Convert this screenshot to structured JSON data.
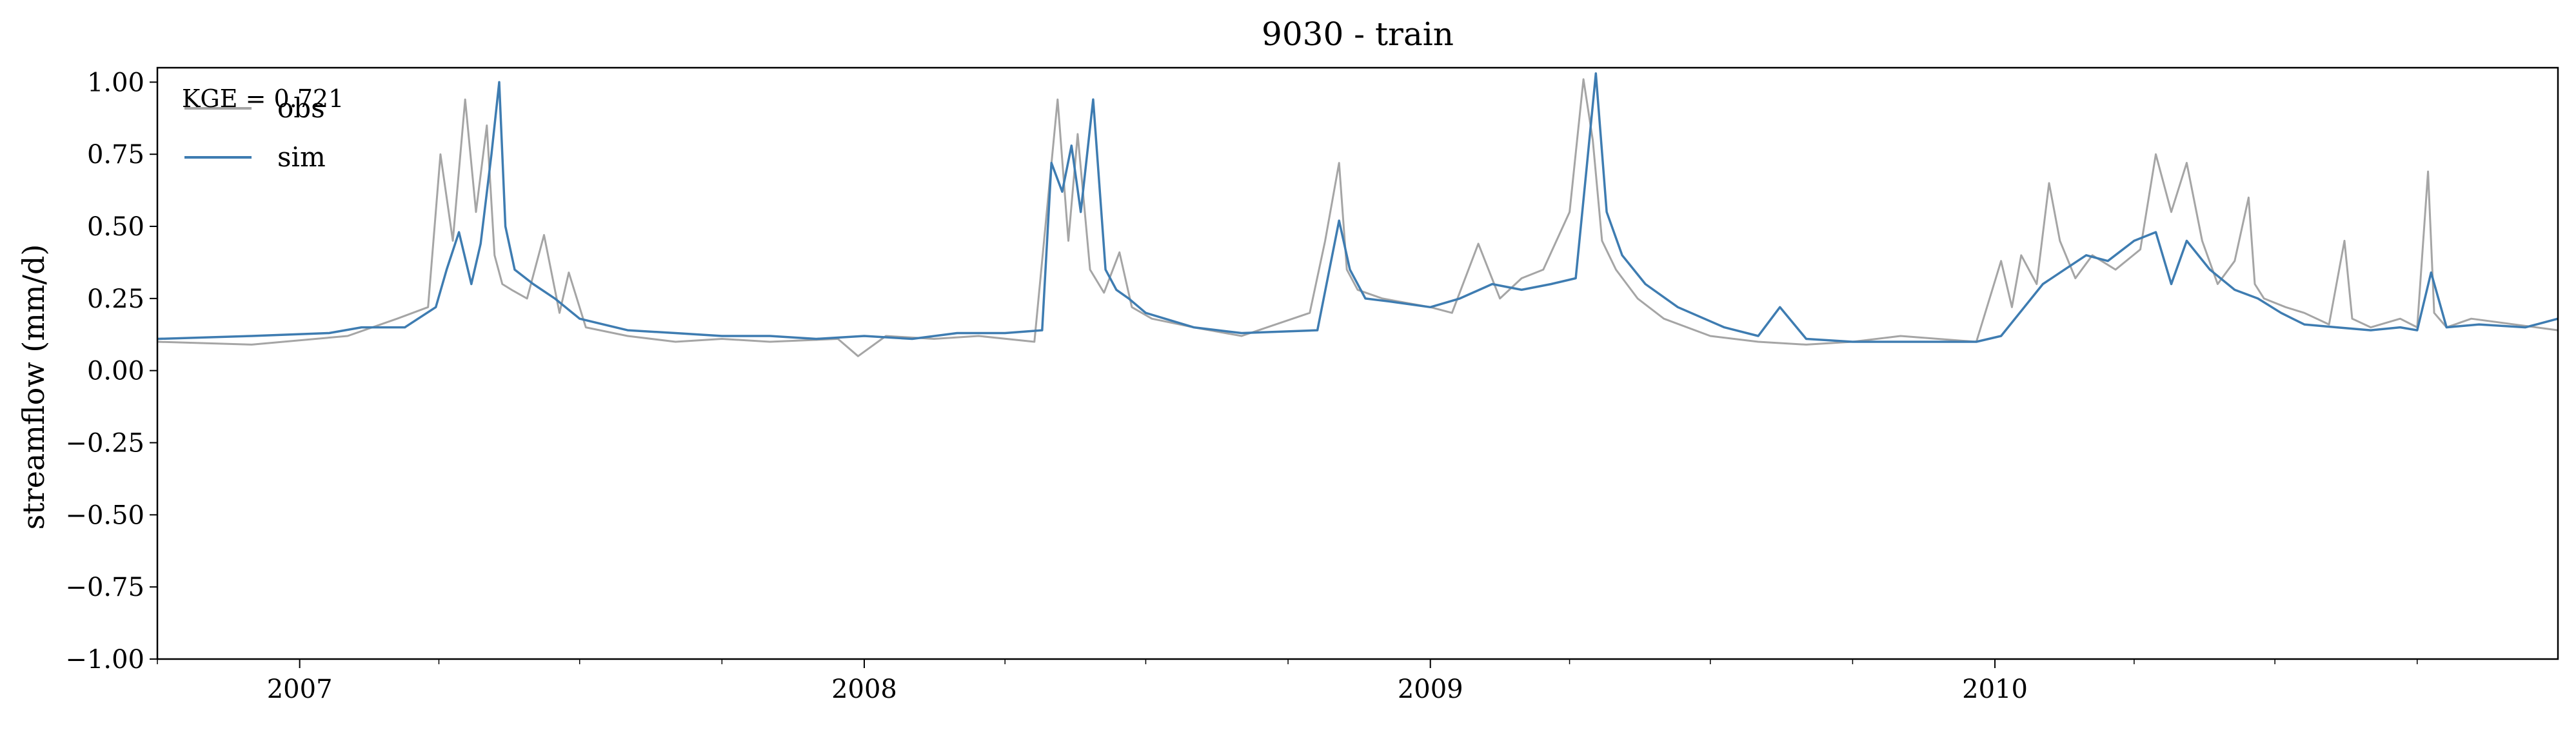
{
  "chart_data": {
    "type": "line",
    "title": "9030 - train",
    "xlabel": "",
    "ylabel": "streamflow (mm/d)",
    "xlim": [
      "2006-10-01",
      "2010-12-31"
    ],
    "ylim": [
      -1.0,
      1.05
    ],
    "y_ticks": [
      -1.0,
      -0.75,
      -0.5,
      -0.25,
      0.0,
      0.25,
      0.5,
      0.75,
      1.0
    ],
    "y_tick_labels": [
      "−1.00",
      "−0.75",
      "−0.50",
      "−0.25",
      "0.00",
      "0.25",
      "0.50",
      "0.75",
      "1.00"
    ],
    "x_major_ticks": [
      "2007-01-01",
      "2008-01-01",
      "2009-01-01",
      "2010-01-01"
    ],
    "x_tick_labels": [
      "2007",
      "2008",
      "2009",
      "2010"
    ],
    "x_minor_months": [
      1,
      4,
      7,
      10
    ],
    "grid": false,
    "legend_position": "top-left",
    "annotation": "KGE = 0.721",
    "series": [
      {
        "name": "obs",
        "color": "#a5a5a5",
        "x": [
          "2006-10-01",
          "2006-12-01",
          "2007-02-01",
          "2007-03-05",
          "2007-03-25",
          "2007-04-02",
          "2007-04-10",
          "2007-04-18",
          "2007-04-25",
          "2007-05-02",
          "2007-05-07",
          "2007-05-12",
          "2007-05-18",
          "2007-05-28",
          "2007-06-08",
          "2007-06-18",
          "2007-06-24",
          "2007-07-05",
          "2007-08-01",
          "2007-09-01",
          "2007-10-01",
          "2007-11-01",
          "2007-12-15",
          "2007-12-28",
          "2008-01-15",
          "2008-02-15",
          "2008-03-15",
          "2008-04-20",
          "2008-04-28",
          "2008-05-05",
          "2008-05-12",
          "2008-05-18",
          "2008-05-26",
          "2008-06-04",
          "2008-06-14",
          "2008-06-22",
          "2008-07-05",
          "2008-08-01",
          "2008-09-01",
          "2008-10-15",
          "2008-10-25",
          "2008-11-03",
          "2008-11-08",
          "2008-11-15",
          "2008-12-01",
          "2009-01-01",
          "2009-01-15",
          "2009-02-01",
          "2009-02-15",
          "2009-03-01",
          "2009-03-15",
          "2009-04-01",
          "2009-04-10",
          "2009-04-16",
          "2009-04-22",
          "2009-05-01",
          "2009-05-15",
          "2009-06-01",
          "2009-07-01",
          "2009-08-01",
          "2009-09-01",
          "2009-10-01",
          "2009-11-01",
          "2009-12-20",
          "2010-01-05",
          "2010-01-12",
          "2010-01-18",
          "2010-01-28",
          "2010-02-05",
          "2010-02-12",
          "2010-02-22",
          "2010-03-05",
          "2010-03-20",
          "2010-04-05",
          "2010-04-15",
          "2010-04-25",
          "2010-05-05",
          "2010-05-15",
          "2010-05-25",
          "2010-06-05",
          "2010-06-14",
          "2010-06-18",
          "2010-06-24",
          "2010-07-08",
          "2010-07-20",
          "2010-08-05",
          "2010-08-15",
          "2010-08-20",
          "2010-09-01",
          "2010-09-20",
          "2010-10-01",
          "2010-10-08",
          "2010-10-12",
          "2010-10-20",
          "2010-11-05",
          "2010-12-31"
        ],
        "y": [
          0.1,
          0.09,
          0.12,
          0.18,
          0.22,
          0.75,
          0.45,
          0.94,
          0.55,
          0.85,
          0.4,
          0.3,
          0.28,
          0.25,
          0.47,
          0.2,
          0.34,
          0.15,
          0.12,
          0.1,
          0.11,
          0.1,
          0.11,
          0.05,
          0.12,
          0.11,
          0.12,
          0.1,
          0.55,
          0.94,
          0.45,
          0.82,
          0.35,
          0.27,
          0.41,
          0.22,
          0.18,
          0.15,
          0.12,
          0.2,
          0.45,
          0.72,
          0.35,
          0.28,
          0.25,
          0.22,
          0.2,
          0.44,
          0.25,
          0.32,
          0.35,
          0.55,
          1.01,
          0.8,
          0.45,
          0.35,
          0.25,
          0.18,
          0.12,
          0.1,
          0.09,
          0.1,
          0.12,
          0.1,
          0.38,
          0.22,
          0.4,
          0.3,
          0.65,
          0.45,
          0.32,
          0.4,
          0.35,
          0.42,
          0.75,
          0.55,
          0.72,
          0.45,
          0.3,
          0.38,
          0.6,
          0.3,
          0.25,
          0.22,
          0.2,
          0.16,
          0.45,
          0.18,
          0.15,
          0.18,
          0.15,
          0.69,
          0.2,
          0.15,
          0.18,
          0.14
        ]
      },
      {
        "name": "sim",
        "color": "#3e7cb1",
        "x": [
          "2006-10-01",
          "2006-12-01",
          "2007-01-20",
          "2007-02-10",
          "2007-03-10",
          "2007-03-30",
          "2007-04-06",
          "2007-04-14",
          "2007-04-22",
          "2007-04-28",
          "2007-05-05",
          "2007-05-10",
          "2007-05-14",
          "2007-05-20",
          "2007-06-01",
          "2007-06-15",
          "2007-07-01",
          "2007-08-01",
          "2007-09-01",
          "2007-10-01",
          "2007-11-01",
          "2007-12-01",
          "2008-01-01",
          "2008-02-01",
          "2008-03-01",
          "2008-04-01",
          "2008-04-25",
          "2008-05-01",
          "2008-05-08",
          "2008-05-14",
          "2008-05-20",
          "2008-05-28",
          "2008-06-05",
          "2008-06-12",
          "2008-06-20",
          "2008-07-01",
          "2008-08-01",
          "2008-09-01",
          "2008-10-20",
          "2008-11-03",
          "2008-11-10",
          "2008-11-20",
          "2008-12-05",
          "2009-01-01",
          "2009-01-20",
          "2009-02-10",
          "2009-03-01",
          "2009-03-20",
          "2009-04-05",
          "2009-04-12",
          "2009-04-18",
          "2009-04-25",
          "2009-05-05",
          "2009-05-20",
          "2009-06-10",
          "2009-07-10",
          "2009-08-01",
          "2009-08-15",
          "2009-09-01",
          "2009-10-01",
          "2009-11-01",
          "2009-12-20",
          "2010-01-05",
          "2010-01-20",
          "2010-02-01",
          "2010-02-15",
          "2010-03-01",
          "2010-03-15",
          "2010-04-01",
          "2010-04-15",
          "2010-04-25",
          "2010-05-05",
          "2010-05-20",
          "2010-06-05",
          "2010-06-20",
          "2010-07-05",
          "2010-07-20",
          "2010-08-10",
          "2010-09-01",
          "2010-09-20",
          "2010-10-01",
          "2010-10-10",
          "2010-10-20",
          "2010-11-10",
          "2010-12-10",
          "2010-12-31"
        ],
        "y": [
          0.11,
          0.12,
          0.13,
          0.15,
          0.15,
          0.22,
          0.35,
          0.48,
          0.3,
          0.44,
          0.75,
          1.0,
          0.5,
          0.35,
          0.3,
          0.25,
          0.18,
          0.14,
          0.13,
          0.12,
          0.12,
          0.11,
          0.12,
          0.11,
          0.13,
          0.13,
          0.14,
          0.72,
          0.62,
          0.78,
          0.55,
          0.94,
          0.35,
          0.28,
          0.25,
          0.2,
          0.15,
          0.13,
          0.14,
          0.52,
          0.35,
          0.25,
          0.24,
          0.22,
          0.25,
          0.3,
          0.28,
          0.3,
          0.32,
          0.7,
          1.03,
          0.55,
          0.4,
          0.3,
          0.22,
          0.15,
          0.12,
          0.22,
          0.11,
          0.1,
          0.1,
          0.1,
          0.12,
          0.22,
          0.3,
          0.35,
          0.4,
          0.38,
          0.45,
          0.48,
          0.3,
          0.45,
          0.35,
          0.28,
          0.25,
          0.2,
          0.16,
          0.15,
          0.14,
          0.15,
          0.14,
          0.34,
          0.15,
          0.16,
          0.15,
          0.18
        ]
      }
    ]
  }
}
